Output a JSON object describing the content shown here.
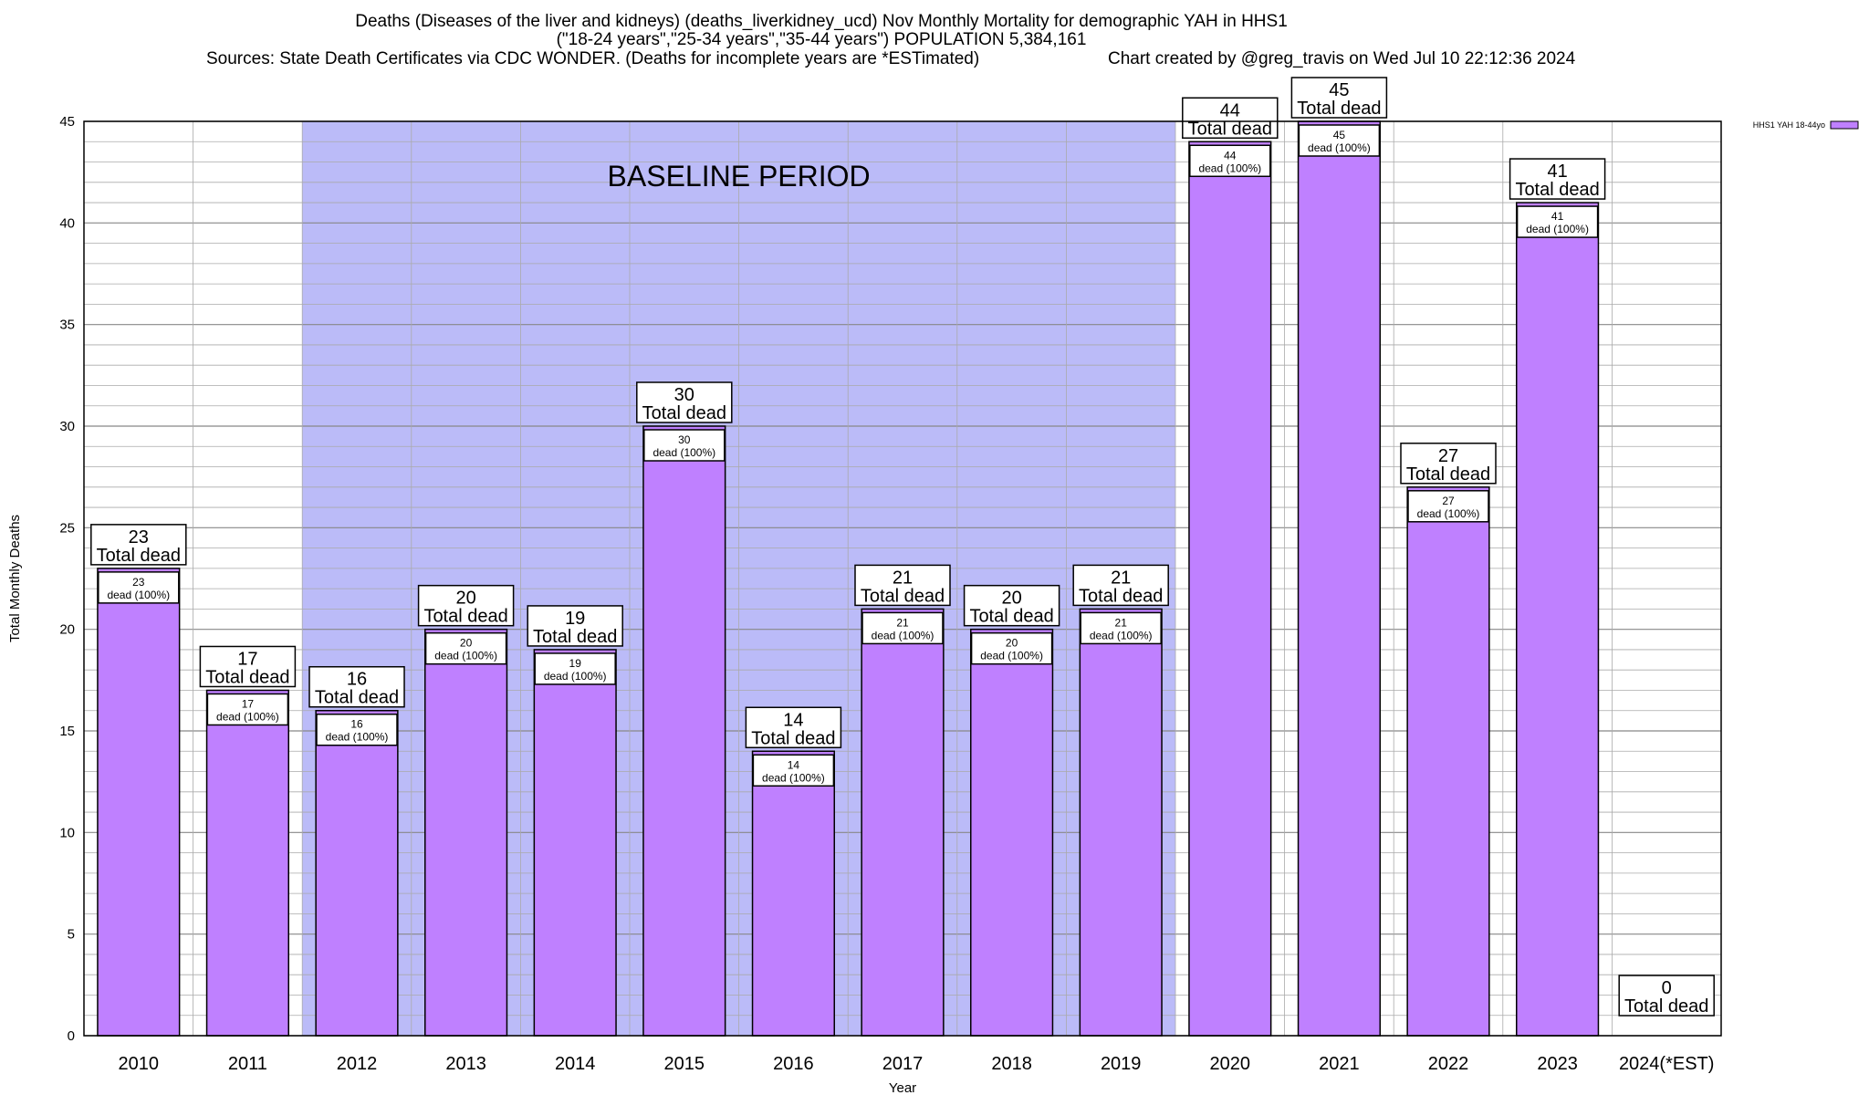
{
  "header": {
    "title_line1": "Deaths (Diseases of the liver and kidneys) (deaths_liverkidney_ucd) Nov Monthly Mortality for demographic YAH in HHS1",
    "title_line2": "(\"18-24 years\",\"25-34 years\",\"35-44 years\") POPULATION 5,384,161",
    "sources": "Sources: State Death Certificates via CDC WONDER. (Deaths for incomplete years are *ESTimated)",
    "credit": "Chart created by @greg_travis on Wed Jul 10 22:12:36 2024"
  },
  "colors": {
    "bar": "#bf80ff",
    "baseline_shade": "#bbbbf8",
    "grid": "#aaaaaa"
  },
  "chart_data": {
    "type": "bar",
    "xlabel": "Year",
    "ylabel": "Total Monthly Deaths",
    "ylim": [
      0,
      45
    ],
    "yticks": [
      0,
      5,
      10,
      15,
      20,
      25,
      30,
      35,
      40,
      45
    ],
    "grid": true,
    "categories": [
      "2010",
      "2011",
      "2012",
      "2013",
      "2014",
      "2015",
      "2016",
      "2017",
      "2018",
      "2019",
      "2020",
      "2021",
      "2022",
      "2023",
      "2024(*EST)"
    ],
    "series": [
      {
        "name": "HHS1 YAH 18-44yo",
        "values": [
          23,
          17,
          16,
          20,
          19,
          30,
          14,
          21,
          20,
          21,
          44,
          45,
          27,
          41,
          0
        ]
      }
    ],
    "total_label_suffix": "Total dead",
    "inner_label_suffix": "dead (100%)",
    "legend_position": "top-right",
    "baseline_period": {
      "label": "BASELINE PERIOD",
      "start": "2012",
      "end": "2019"
    }
  }
}
